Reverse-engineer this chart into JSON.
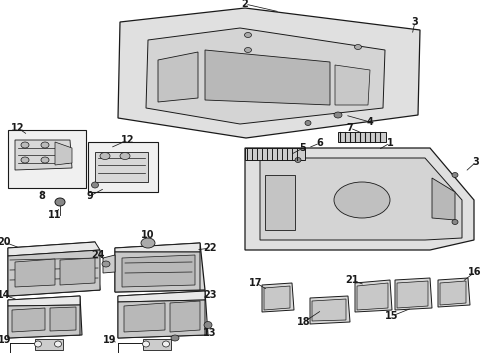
{
  "bg_color": "#ffffff",
  "line_color": "#1a1a1a",
  "fill_light": "#e8e8e8",
  "fill_mid": "#d0d0d0",
  "fill_dark": "#b8b8b8",
  "fill_shade": "#c8c8c8",
  "fig_width": 4.89,
  "fig_height": 3.6,
  "dpi": 100
}
